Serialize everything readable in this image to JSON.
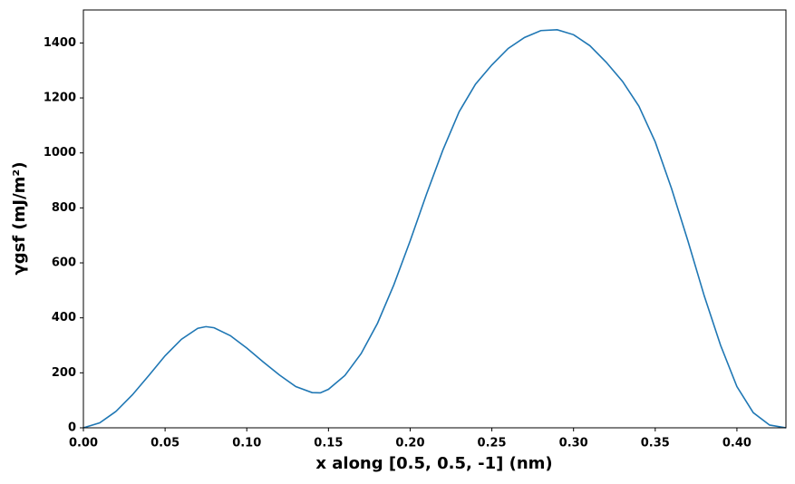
{
  "chart_data": {
    "type": "line",
    "xlabel": "x along [0.5, 0.5, -1] (nm)",
    "ylabel": "γgsf (mJ/m²)",
    "x": [
      0,
      0.01,
      0.02,
      0.03,
      0.04,
      0.05,
      0.06,
      0.07,
      0.075,
      0.08,
      0.09,
      0.1,
      0.11,
      0.12,
      0.13,
      0.14,
      0.145,
      0.15,
      0.16,
      0.17,
      0.18,
      0.19,
      0.2,
      0.21,
      0.22,
      0.23,
      0.24,
      0.25,
      0.26,
      0.27,
      0.28,
      0.29,
      0.3,
      0.31,
      0.32,
      0.33,
      0.34,
      0.35,
      0.36,
      0.37,
      0.38,
      0.39,
      0.4,
      0.41,
      0.42,
      0.43
    ],
    "series": [
      {
        "name": "γgsf",
        "color": "#1f77b4",
        "values": [
          0,
          18,
          60,
          120,
          190,
          262,
          322,
          362,
          368,
          364,
          335,
          290,
          240,
          192,
          150,
          128,
          127,
          140,
          190,
          270,
          380,
          520,
          680,
          850,
          1010,
          1150,
          1250,
          1320,
          1380,
          1420,
          1445,
          1448,
          1430,
          1390,
          1330,
          1260,
          1170,
          1040,
          870,
          680,
          480,
          300,
          150,
          55,
          10,
          0
        ]
      }
    ],
    "xlim": [
      0,
      0.43
    ],
    "ylim": [
      0,
      1520
    ],
    "xticks": [
      {
        "value": 0,
        "label": "0.00"
      },
      0.05,
      {
        "value": 0.1,
        "label": "0.10"
      },
      0.15,
      {
        "value": 0.2,
        "label": "0.20"
      },
      0.25,
      {
        "value": 0.3,
        "label": "0.30"
      },
      0.35,
      {
        "value": 0.4,
        "label": "0.40"
      }
    ],
    "yticks": [
      0,
      200,
      400,
      600,
      800,
      1000,
      1200,
      1400
    ],
    "grid": false
  }
}
